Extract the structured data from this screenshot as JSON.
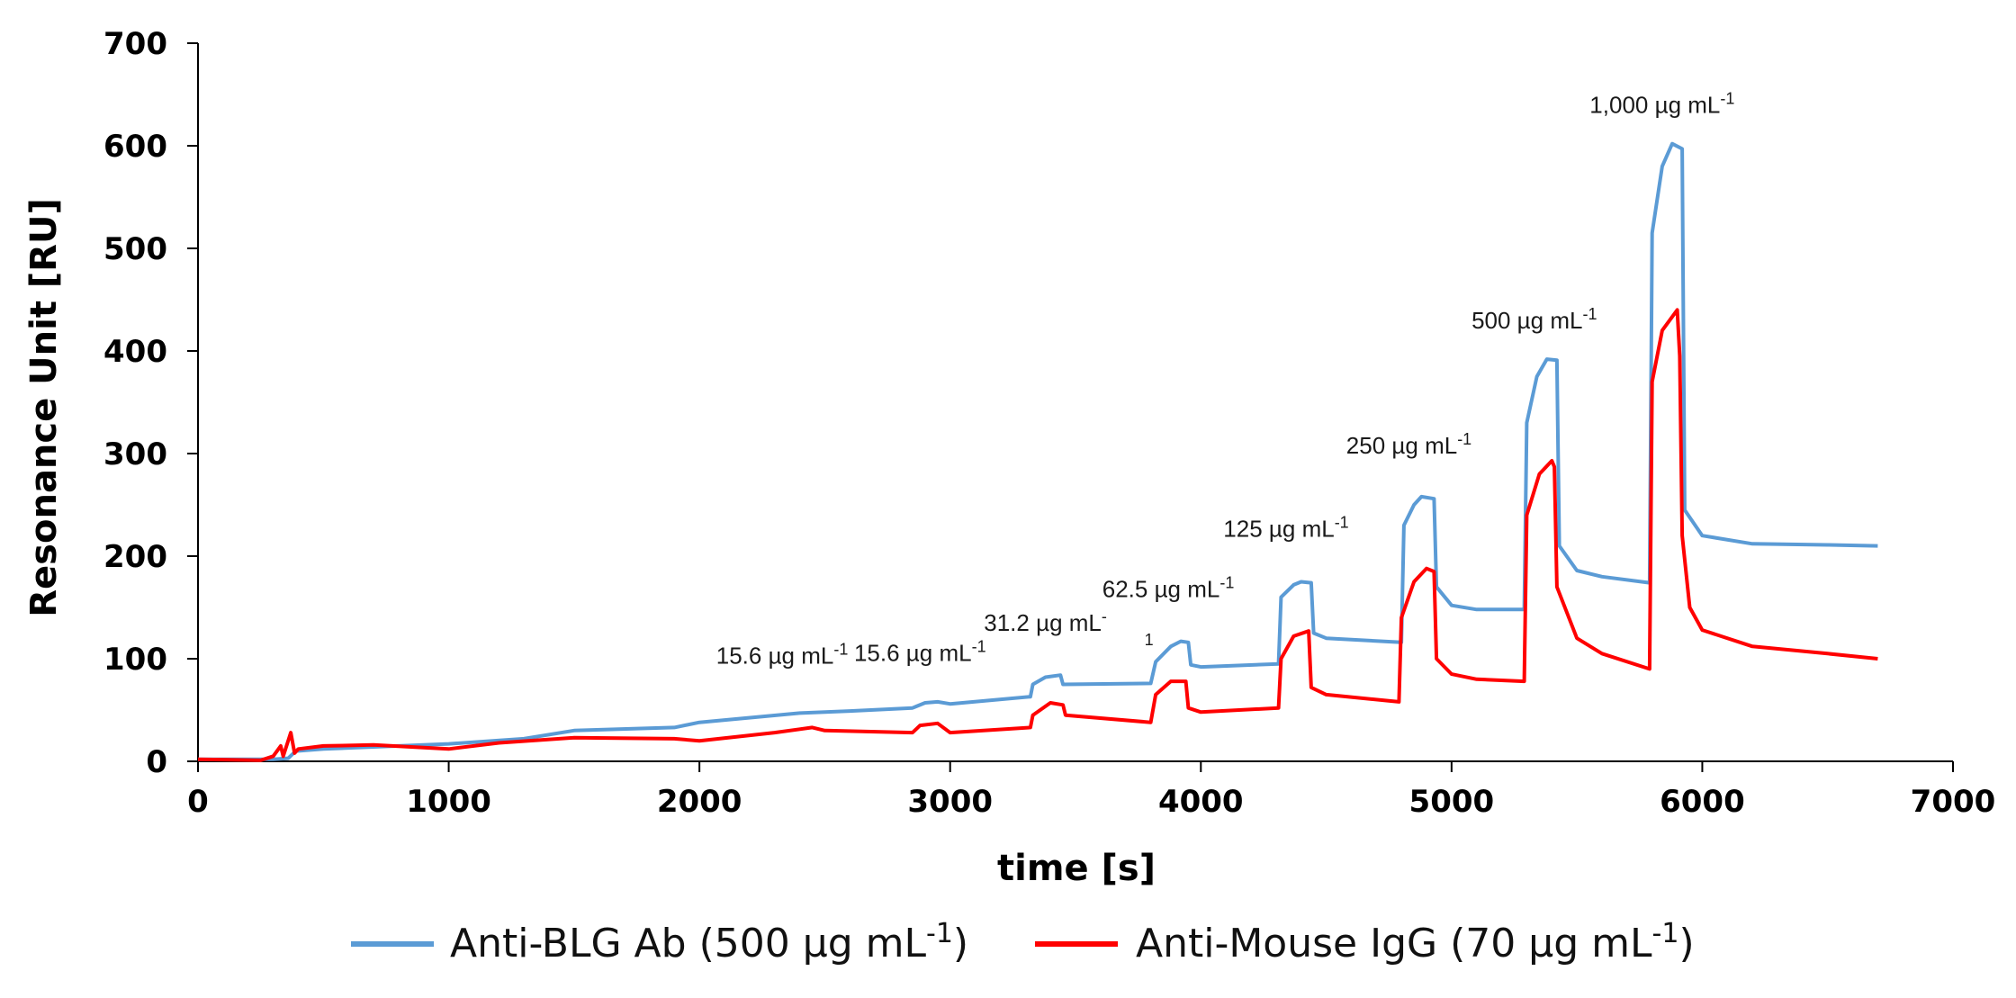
{
  "chart_data": {
    "type": "line",
    "title": "",
    "xlabel": "time [s]",
    "ylabel": "Resonance Unit [RU]",
    "xlim": [
      0,
      7000
    ],
    "ylim": [
      0,
      700
    ],
    "x_ticks": [
      0,
      1000,
      2000,
      3000,
      4000,
      5000,
      6000,
      7000
    ],
    "y_ticks": [
      0,
      100,
      200,
      300,
      400,
      500,
      600,
      700
    ],
    "grid": false,
    "legend_position": "bottom",
    "colors": {
      "blue": "#5b9bd5",
      "red": "#ff0000"
    },
    "series": [
      {
        "name": "Anti-BLG Ab (500 µg mL-1)",
        "legend_main": "Anti-BLG Ab (500 µg mL",
        "legend_sup": "-1",
        "legend_end": ")",
        "color": "#5b9bd5",
        "points": [
          [
            0,
            2
          ],
          [
            300,
            2
          ],
          [
            360,
            3
          ],
          [
            390,
            10
          ],
          [
            500,
            12
          ],
          [
            700,
            14
          ],
          [
            1000,
            17
          ],
          [
            1300,
            22
          ],
          [
            1500,
            30
          ],
          [
            1900,
            33
          ],
          [
            2000,
            38
          ],
          [
            2400,
            47
          ],
          [
            2600,
            49
          ],
          [
            2850,
            52
          ],
          [
            2900,
            57
          ],
          [
            2950,
            58
          ],
          [
            3000,
            56
          ],
          [
            3320,
            63
          ],
          [
            3330,
            75
          ],
          [
            3380,
            82
          ],
          [
            3440,
            84
          ],
          [
            3450,
            75
          ],
          [
            3800,
            76
          ],
          [
            3820,
            97
          ],
          [
            3880,
            112
          ],
          [
            3920,
            117
          ],
          [
            3950,
            116
          ],
          [
            3960,
            94
          ],
          [
            4000,
            92
          ],
          [
            4310,
            95
          ],
          [
            4320,
            160
          ],
          [
            4370,
            172
          ],
          [
            4400,
            175
          ],
          [
            4440,
            174
          ],
          [
            4450,
            125
          ],
          [
            4500,
            120
          ],
          [
            4800,
            116
          ],
          [
            4810,
            230
          ],
          [
            4850,
            250
          ],
          [
            4880,
            258
          ],
          [
            4930,
            256
          ],
          [
            4940,
            170
          ],
          [
            5000,
            152
          ],
          [
            5100,
            148
          ],
          [
            5290,
            148
          ],
          [
            5300,
            330
          ],
          [
            5340,
            375
          ],
          [
            5380,
            392
          ],
          [
            5420,
            391
          ],
          [
            5430,
            210
          ],
          [
            5500,
            186
          ],
          [
            5600,
            180
          ],
          [
            5790,
            174
          ],
          [
            5800,
            515
          ],
          [
            5840,
            580
          ],
          [
            5880,
            602
          ],
          [
            5920,
            597
          ],
          [
            5930,
            245
          ],
          [
            6000,
            220
          ],
          [
            6200,
            212
          ],
          [
            6500,
            211
          ],
          [
            6700,
            210
          ]
        ]
      },
      {
        "name": "Anti-Mouse IgG (70 µg mL-1)",
        "legend_main": "Anti-Mouse IgG (70 µg mL",
        "legend_sup": "-1",
        "legend_end": ")",
        "color": "#ff0000",
        "points": [
          [
            0,
            2
          ],
          [
            250,
            1
          ],
          [
            300,
            5
          ],
          [
            330,
            15
          ],
          [
            340,
            5
          ],
          [
            370,
            28
          ],
          [
            385,
            8
          ],
          [
            400,
            12
          ],
          [
            500,
            15
          ],
          [
            700,
            16
          ],
          [
            1000,
            12
          ],
          [
            1200,
            18
          ],
          [
            1500,
            23
          ],
          [
            1900,
            22
          ],
          [
            2000,
            20
          ],
          [
            2300,
            28
          ],
          [
            2450,
            33
          ],
          [
            2500,
            30
          ],
          [
            2850,
            28
          ],
          [
            2880,
            35
          ],
          [
            2950,
            37
          ],
          [
            3000,
            28
          ],
          [
            3320,
            33
          ],
          [
            3330,
            45
          ],
          [
            3400,
            57
          ],
          [
            3450,
            55
          ],
          [
            3460,
            45
          ],
          [
            3800,
            38
          ],
          [
            3820,
            65
          ],
          [
            3880,
            78
          ],
          [
            3940,
            78
          ],
          [
            3950,
            52
          ],
          [
            4000,
            48
          ],
          [
            4310,
            52
          ],
          [
            4320,
            100
          ],
          [
            4370,
            122
          ],
          [
            4430,
            127
          ],
          [
            4440,
            72
          ],
          [
            4500,
            65
          ],
          [
            4790,
            58
          ],
          [
            4800,
            140
          ],
          [
            4850,
            175
          ],
          [
            4900,
            188
          ],
          [
            4930,
            185
          ],
          [
            4940,
            100
          ],
          [
            5000,
            85
          ],
          [
            5100,
            80
          ],
          [
            5290,
            78
          ],
          [
            5300,
            240
          ],
          [
            5350,
            280
          ],
          [
            5400,
            293
          ],
          [
            5410,
            287
          ],
          [
            5420,
            170
          ],
          [
            5500,
            120
          ],
          [
            5600,
            105
          ],
          [
            5790,
            90
          ],
          [
            5800,
            370
          ],
          [
            5840,
            420
          ],
          [
            5900,
            440
          ],
          [
            5910,
            395
          ],
          [
            5920,
            220
          ],
          [
            5950,
            150
          ],
          [
            6000,
            128
          ],
          [
            6200,
            112
          ],
          [
            6500,
            105
          ],
          [
            6700,
            100
          ]
        ]
      }
    ],
    "annotations": [
      {
        "main": "15.6 µg mL",
        "sup": "-1",
        "x": 2330,
        "y": 95
      },
      {
        "main": "15.6 µg mL",
        "sup": "-1",
        "x": 2880,
        "y": 98
      },
      {
        "main": "31.2 µg mL",
        "sup": "-",
        "sup2": "1",
        "x": 3380,
        "y": 127
      },
      {
        "main": "62.5 µg mL",
        "sup": "-1",
        "x": 3870,
        "y": 160
      },
      {
        "main": "125 µg mL",
        "sup": "-1",
        "x": 4340,
        "y": 219
      },
      {
        "main": "250 µg mL",
        "sup": "-1",
        "x": 4830,
        "y": 300
      },
      {
        "main": "500 µg mL",
        "sup": "-1",
        "x": 5330,
        "y": 422
      },
      {
        "main": "1,000 µg mL",
        "sup": "-1",
        "x": 5840,
        "y": 632
      }
    ]
  }
}
